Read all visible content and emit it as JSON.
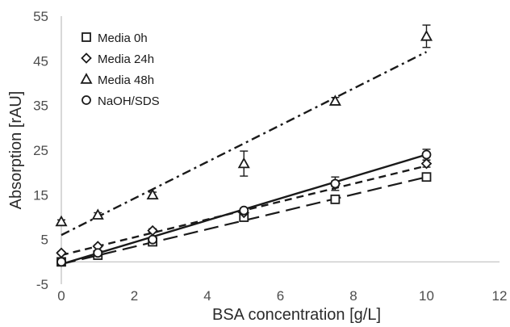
{
  "chart_data": {
    "type": "scatter",
    "xlabel": "BSA concentration [g/L]",
    "ylabel": "Absorption [rAU]",
    "xlim": [
      0,
      12
    ],
    "ylim": [
      -5,
      55
    ],
    "x_ticks": [
      "0",
      "2",
      "4",
      "6",
      "8",
      "10",
      "12"
    ],
    "y_ticks": [
      "-5",
      "5",
      "15",
      "25",
      "35",
      "45",
      "55"
    ],
    "grid": false,
    "legend_position": "top-left",
    "x": [
      0,
      1,
      2.5,
      5,
      7.5,
      10
    ],
    "series": [
      {
        "name": "Media 0h",
        "marker": "square",
        "line_style": "long-dash",
        "values": [
          0,
          1.5,
          4.5,
          10,
          14,
          19
        ],
        "errors": [
          0.3,
          0.4,
          0.5,
          0.6,
          0.8,
          0.8
        ],
        "trend": [
          -0.5,
          19.0
        ]
      },
      {
        "name": "Media 24h",
        "marker": "diamond",
        "line_style": "short-dash",
        "values": [
          2,
          3.5,
          7,
          11,
          17.5,
          22
        ],
        "errors": [
          0.3,
          0.3,
          0.4,
          0.5,
          0.6,
          0.8
        ],
        "trend": [
          1.5,
          21.5
        ]
      },
      {
        "name": "Media 48h",
        "marker": "triangle",
        "line_style": "dash-dot",
        "values": [
          9,
          10.5,
          15,
          22,
          36,
          50.5
        ],
        "errors": [
          0.4,
          0.5,
          0.6,
          2.8,
          0.8,
          2.5
        ],
        "trend": [
          6.0,
          47.0
        ]
      },
      {
        "name": "NaOH/SDS",
        "marker": "circle",
        "line_style": "solid",
        "values": [
          0,
          2,
          5,
          11.5,
          17.5,
          24
        ],
        "errors": [
          0.3,
          0.3,
          0.4,
          0.5,
          1.5,
          1.2
        ],
        "trend": [
          -0.5,
          24.0
        ]
      }
    ]
  }
}
